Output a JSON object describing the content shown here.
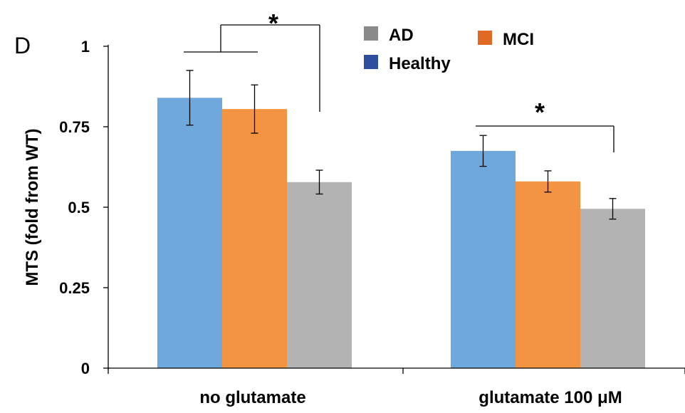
{
  "panel_label": "D",
  "chart_data": {
    "type": "bar",
    "categories": [
      "no glutamate",
      "glutamate 100 μM"
    ],
    "ylabel": "MTS (fold from WT)",
    "xlabel": "",
    "ylim": [
      0,
      1
    ],
    "yticks": [
      {
        "value": 0,
        "label": "0"
      },
      {
        "value": 0.25,
        "label": "0.25"
      },
      {
        "value": 0.5,
        "label": "0.5"
      },
      {
        "value": 0.75,
        "label": "0.75"
      },
      {
        "value": 1,
        "label": "1"
      }
    ],
    "series": [
      {
        "name": "Healthy",
        "bar_color": "#6fa8dc",
        "legend_color": "#2f4f9e",
        "values": [
          0.84,
          0.675
        ],
        "errors": [
          0.085,
          0.048
        ]
      },
      {
        "name": "MCI",
        "bar_color": "#f29442",
        "legend_color": "#e06a24",
        "values": [
          0.805,
          0.58
        ],
        "errors": [
          0.075,
          0.033
        ]
      },
      {
        "name": "AD",
        "bar_color": "#b3b3b3",
        "legend_color": "#8a8a8a",
        "values": [
          0.578,
          0.495
        ],
        "errors": [
          0.037,
          0.032
        ]
      }
    ],
    "significance_marker": "*",
    "grid": false,
    "legend_position": "top-right"
  }
}
